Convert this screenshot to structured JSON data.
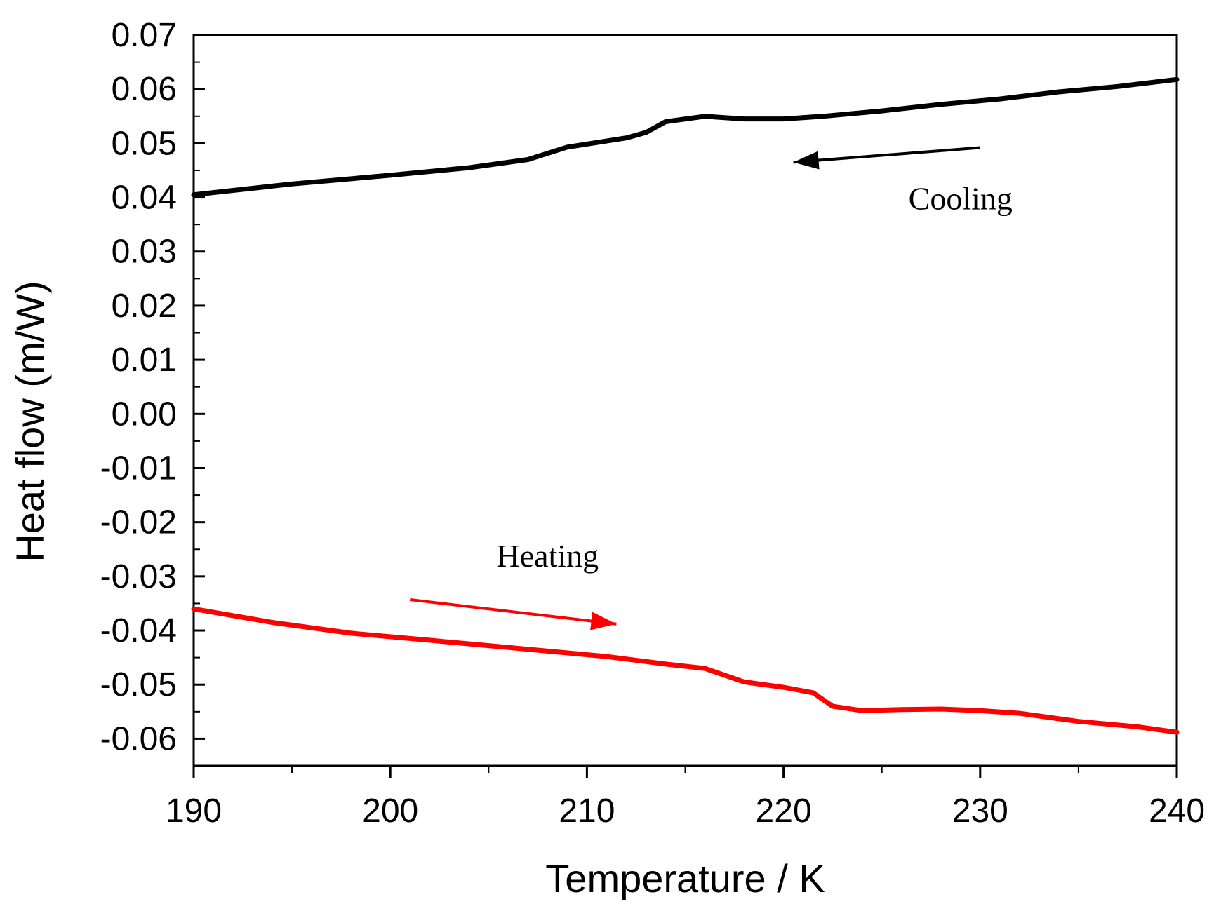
{
  "chart_data": {
    "type": "line",
    "title": "",
    "xlabel": "Temperature / K",
    "ylabel": "Heat flow (m/W)",
    "xlim": [
      190,
      240
    ],
    "ylim": [
      -0.065,
      0.07
    ],
    "x_ticks": [
      190,
      200,
      210,
      220,
      230,
      240
    ],
    "x_tick_labels": [
      "190",
      "200",
      "210",
      "220",
      "230",
      "240"
    ],
    "y_ticks": [
      0.07,
      0.06,
      0.05,
      0.04,
      0.03,
      0.02,
      0.01,
      0.0,
      -0.01,
      -0.02,
      -0.03,
      -0.04,
      -0.05,
      -0.06
    ],
    "y_tick_labels": [
      "0.07",
      "0.06",
      "0.05",
      "0.04",
      "0.03",
      "0.02",
      "0.01",
      "0.00",
      "-0.01",
      "-0.02",
      "-0.03",
      "-0.04",
      "-0.05",
      "-0.06"
    ],
    "grid": false,
    "legend": "none",
    "series": [
      {
        "name": "Cooling",
        "color": "#000000",
        "x": [
          190,
          195,
          200,
          204,
          207,
          209,
          212,
          213,
          214,
          216,
          218,
          220,
          222,
          225,
          228,
          231,
          234,
          237,
          240
        ],
        "y": [
          0.0405,
          0.0425,
          0.0441,
          0.0455,
          0.047,
          0.0493,
          0.051,
          0.052,
          0.054,
          0.055,
          0.0545,
          0.0545,
          0.055,
          0.056,
          0.0572,
          0.0582,
          0.0595,
          0.0605,
          0.0618
        ]
      },
      {
        "name": "Heating",
        "color": "#ff0000",
        "x": [
          190,
          194,
          198,
          202,
          205,
          208,
          211,
          214,
          216,
          218,
          220,
          221.5,
          222.5,
          224,
          226,
          228,
          230,
          232,
          235,
          238,
          240
        ],
        "y": [
          -0.036,
          -0.0385,
          -0.0405,
          -0.0418,
          -0.0428,
          -0.0438,
          -0.0448,
          -0.0462,
          -0.047,
          -0.0495,
          -0.0505,
          -0.0515,
          -0.054,
          -0.0548,
          -0.0546,
          -0.0545,
          -0.0548,
          -0.0553,
          -0.0568,
          -0.0578,
          -0.0588
        ]
      }
    ],
    "annotations": [
      {
        "text": "Cooling",
        "x": 229,
        "y": 0.0378,
        "arrow_from": [
          230,
          0.0492
        ],
        "arrow_to": [
          220.5,
          0.0465
        ],
        "color": "#000000"
      },
      {
        "text": "Heating",
        "x": 208,
        "y": -0.0282,
        "arrow_from": [
          201,
          -0.0343
        ],
        "arrow_to": [
          211.5,
          -0.0388
        ],
        "color": "#ff0000"
      }
    ]
  }
}
